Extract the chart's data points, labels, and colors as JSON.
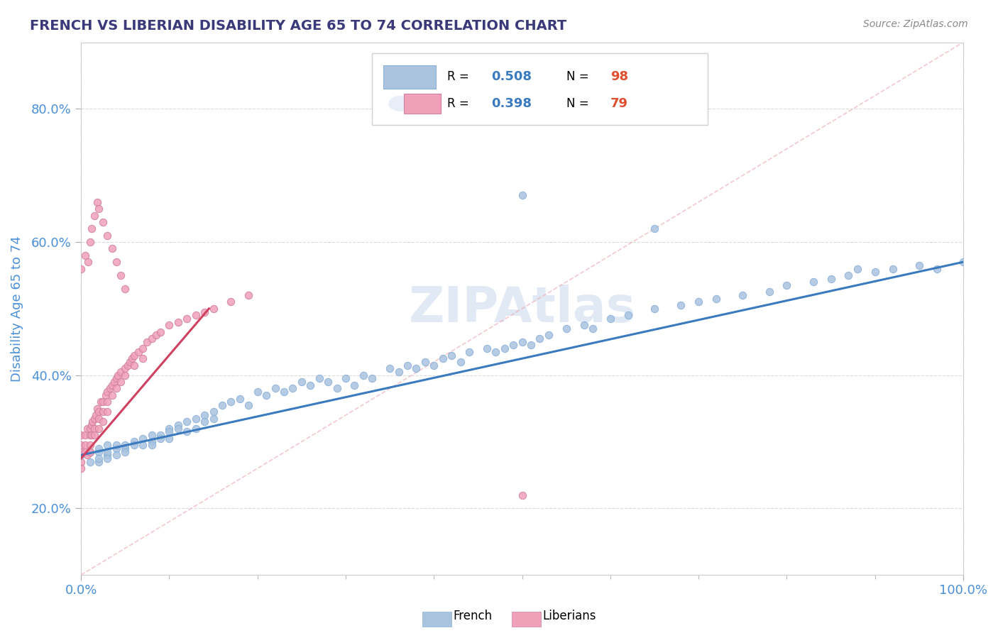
{
  "title": "FRENCH VS LIBERIAN DISABILITY AGE 65 TO 74 CORRELATION CHART",
  "source_text": "Source: ZipAtlas.com",
  "ylabel": "Disability Age 65 to 74",
  "xlim": [
    0.0,
    1.0
  ],
  "ylim": [
    0.1,
    0.9
  ],
  "french_color": "#aac4e0",
  "french_line_color": "#3a7abf",
  "liberian_color": "#f0a0b8",
  "liberian_line_color": "#d04060",
  "diag_color": "#f0b0b8",
  "french_R": 0.508,
  "french_N": 98,
  "liberian_R": 0.398,
  "liberian_N": 79,
  "watermark": "ZIPAtlas",
  "title_color": "#3a3a7a",
  "axis_label_color": "#4a90d9",
  "legend_R_color": "#3a7abf",
  "legend_N_color": "#e05030",
  "ytick_positions": [
    0.2,
    0.4,
    0.6,
    0.8
  ],
  "ytick_labels": [
    "20.0%",
    "40.0%",
    "60.0%",
    "80.0%"
  ],
  "xtick_positions": [
    0.0,
    1.0
  ],
  "xtick_labels": [
    "0.0%",
    "100.0%"
  ],
  "french_x": [
    0.0,
    0.01,
    0.01,
    0.02,
    0.02,
    0.02,
    0.02,
    0.03,
    0.03,
    0.03,
    0.03,
    0.04,
    0.04,
    0.04,
    0.05,
    0.05,
    0.05,
    0.06,
    0.06,
    0.07,
    0.07,
    0.08,
    0.08,
    0.08,
    0.09,
    0.09,
    0.1,
    0.1,
    0.1,
    0.11,
    0.11,
    0.12,
    0.12,
    0.13,
    0.13,
    0.14,
    0.14,
    0.15,
    0.15,
    0.16,
    0.17,
    0.18,
    0.19,
    0.2,
    0.21,
    0.22,
    0.23,
    0.24,
    0.25,
    0.26,
    0.27,
    0.28,
    0.29,
    0.3,
    0.31,
    0.32,
    0.33,
    0.35,
    0.36,
    0.37,
    0.38,
    0.39,
    0.4,
    0.41,
    0.42,
    0.43,
    0.44,
    0.46,
    0.47,
    0.48,
    0.49,
    0.5,
    0.51,
    0.52,
    0.53,
    0.55,
    0.57,
    0.58,
    0.6,
    0.62,
    0.65,
    0.68,
    0.7,
    0.72,
    0.75,
    0.78,
    0.8,
    0.83,
    0.85,
    0.87,
    0.9,
    0.92,
    0.95,
    0.97,
    1.0,
    0.5,
    0.65,
    0.88
  ],
  "french_y": [
    0.28,
    0.27,
    0.285,
    0.285,
    0.29,
    0.27,
    0.275,
    0.28,
    0.295,
    0.285,
    0.275,
    0.29,
    0.295,
    0.28,
    0.29,
    0.295,
    0.285,
    0.3,
    0.295,
    0.305,
    0.295,
    0.31,
    0.3,
    0.295,
    0.31,
    0.305,
    0.32,
    0.315,
    0.305,
    0.325,
    0.32,
    0.33,
    0.315,
    0.335,
    0.32,
    0.34,
    0.33,
    0.345,
    0.335,
    0.355,
    0.36,
    0.365,
    0.355,
    0.375,
    0.37,
    0.38,
    0.375,
    0.38,
    0.39,
    0.385,
    0.395,
    0.39,
    0.38,
    0.395,
    0.385,
    0.4,
    0.395,
    0.41,
    0.405,
    0.415,
    0.41,
    0.42,
    0.415,
    0.425,
    0.43,
    0.42,
    0.435,
    0.44,
    0.435,
    0.44,
    0.445,
    0.45,
    0.445,
    0.455,
    0.46,
    0.47,
    0.475,
    0.47,
    0.485,
    0.49,
    0.5,
    0.505,
    0.51,
    0.515,
    0.52,
    0.525,
    0.535,
    0.54,
    0.545,
    0.55,
    0.555,
    0.56,
    0.565,
    0.56,
    0.57,
    0.67,
    0.62,
    0.56
  ],
  "liberian_x": [
    0.0,
    0.0,
    0.0,
    0.0,
    0.0,
    0.005,
    0.005,
    0.005,
    0.007,
    0.007,
    0.01,
    0.01,
    0.01,
    0.01,
    0.012,
    0.012,
    0.013,
    0.015,
    0.015,
    0.015,
    0.017,
    0.018,
    0.02,
    0.02,
    0.02,
    0.022,
    0.025,
    0.025,
    0.025,
    0.028,
    0.03,
    0.03,
    0.03,
    0.033,
    0.035,
    0.035,
    0.038,
    0.04,
    0.04,
    0.042,
    0.045,
    0.045,
    0.05,
    0.05,
    0.053,
    0.055,
    0.058,
    0.06,
    0.06,
    0.065,
    0.07,
    0.07,
    0.075,
    0.08,
    0.085,
    0.09,
    0.1,
    0.11,
    0.12,
    0.13,
    0.14,
    0.15,
    0.17,
    0.19,
    0.0,
    0.005,
    0.008,
    0.01,
    0.012,
    0.015,
    0.018,
    0.02,
    0.025,
    0.03,
    0.035,
    0.04,
    0.045,
    0.05,
    0.5
  ],
  "liberian_y": [
    0.27,
    0.285,
    0.295,
    0.31,
    0.26,
    0.285,
    0.295,
    0.31,
    0.32,
    0.28,
    0.32,
    0.31,
    0.295,
    0.285,
    0.325,
    0.31,
    0.33,
    0.335,
    0.32,
    0.31,
    0.34,
    0.35,
    0.345,
    0.335,
    0.32,
    0.36,
    0.36,
    0.345,
    0.33,
    0.37,
    0.375,
    0.36,
    0.345,
    0.38,
    0.385,
    0.37,
    0.39,
    0.395,
    0.38,
    0.4,
    0.405,
    0.39,
    0.41,
    0.4,
    0.415,
    0.42,
    0.425,
    0.43,
    0.415,
    0.435,
    0.44,
    0.425,
    0.45,
    0.455,
    0.46,
    0.465,
    0.475,
    0.48,
    0.485,
    0.49,
    0.495,
    0.5,
    0.51,
    0.52,
    0.56,
    0.58,
    0.57,
    0.6,
    0.62,
    0.64,
    0.66,
    0.65,
    0.63,
    0.61,
    0.59,
    0.57,
    0.55,
    0.53,
    0.22
  ]
}
